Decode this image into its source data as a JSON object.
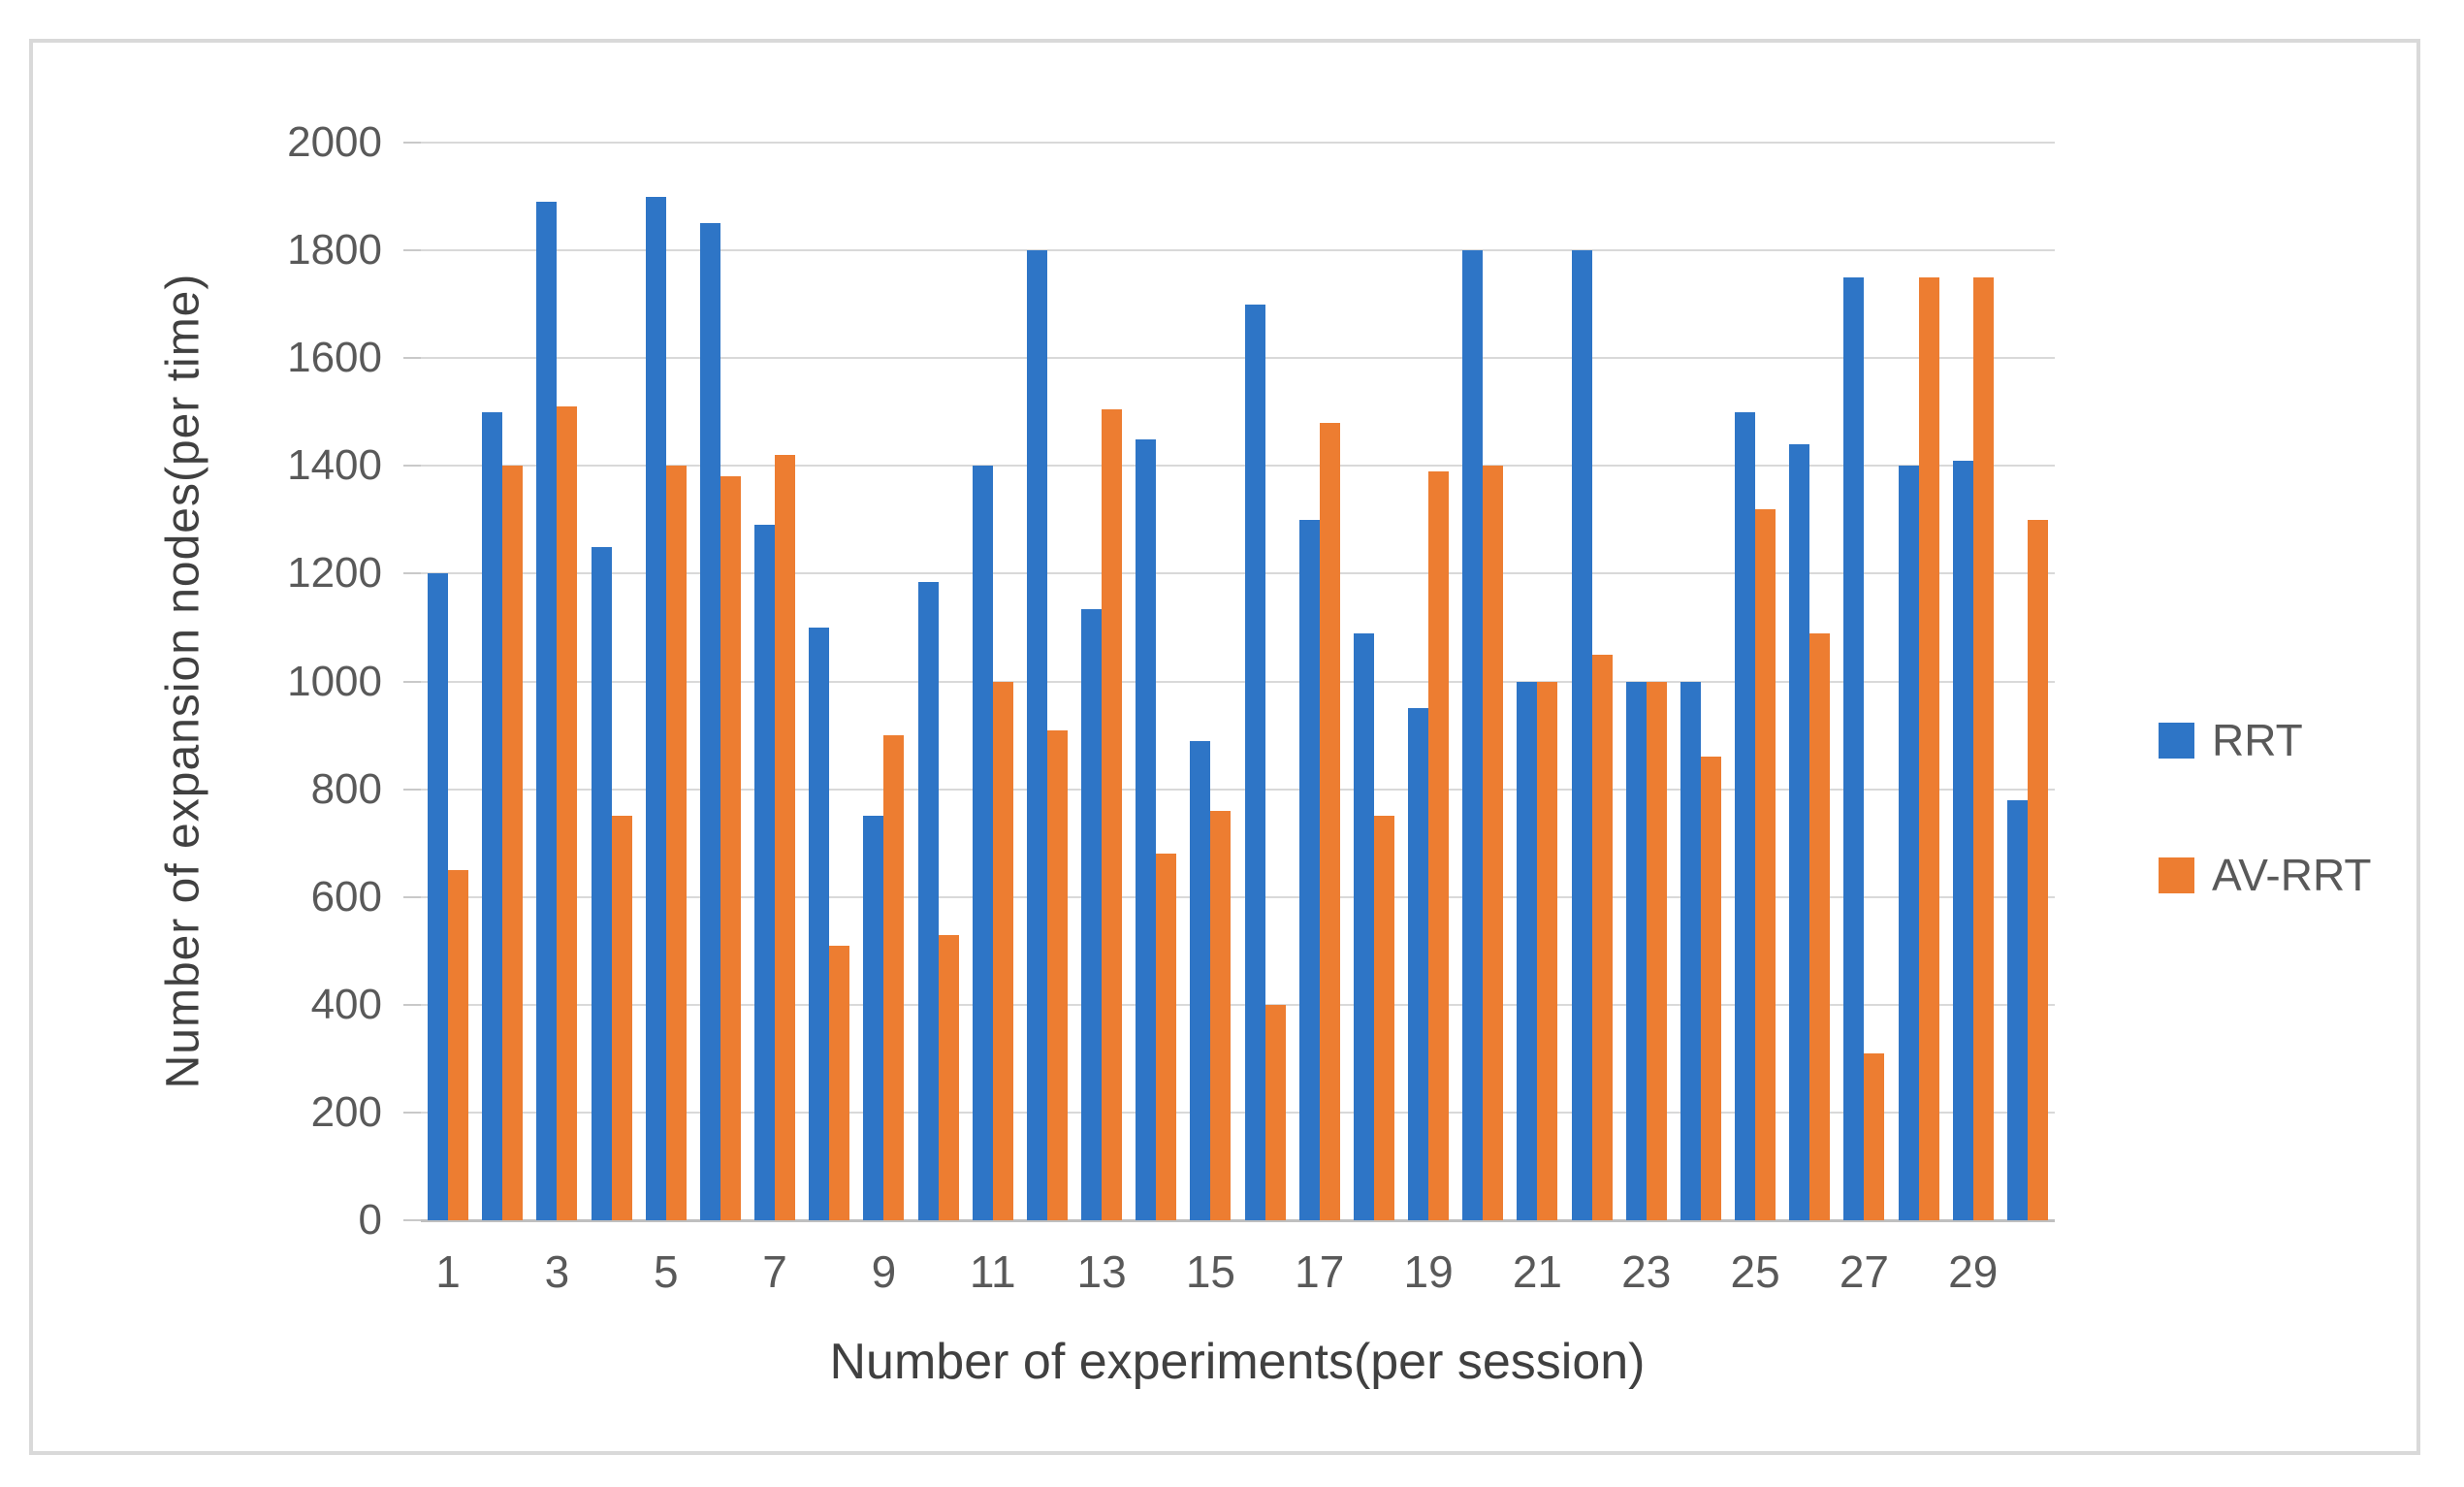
{
  "chart_data": {
    "type": "bar",
    "title": "",
    "xlabel": "Number of experiments(per session)",
    "ylabel": "Number of expansion nodes(per time)",
    "categories": [
      1,
      2,
      3,
      4,
      5,
      6,
      7,
      8,
      9,
      10,
      11,
      12,
      13,
      14,
      15,
      16,
      17,
      18,
      19,
      20,
      21,
      22,
      23,
      24,
      25,
      26,
      27,
      28,
      29,
      30
    ],
    "x_tick_labels": [
      "1",
      "3",
      "5",
      "7",
      "9",
      "11",
      "13",
      "15",
      "17",
      "19",
      "21",
      "23",
      "25",
      "27",
      "29"
    ],
    "x_tick_positions": [
      1,
      3,
      5,
      7,
      9,
      11,
      13,
      15,
      17,
      19,
      21,
      23,
      25,
      27,
      29
    ],
    "series": [
      {
        "name": "RRT",
        "color": "#2e75c6",
        "values": [
          1200,
          1500,
          1890,
          1250,
          1900,
          1850,
          1290,
          1100,
          750,
          1185,
          1400,
          1800,
          1135,
          1450,
          890,
          1700,
          1300,
          1090,
          950,
          1800,
          1000,
          1800,
          1000,
          1000,
          1500,
          1440,
          1750,
          1400,
          1410,
          780
        ]
      },
      {
        "name": "AV-RRT",
        "color": "#ed7d31",
        "values": [
          650,
          1400,
          1510,
          750,
          1400,
          1380,
          1420,
          510,
          900,
          530,
          1000,
          910,
          1505,
          680,
          760,
          400,
          1480,
          750,
          1390,
          1400,
          1000,
          1050,
          1000,
          860,
          1320,
          1090,
          310,
          1750,
          1750,
          1300
        ]
      }
    ],
    "ylim": [
      0,
      2000
    ],
    "y_ticks": [
      0,
      200,
      400,
      600,
      800,
      1000,
      1200,
      1400,
      1600,
      1800,
      2000
    ],
    "grid": true,
    "legend_position": "right"
  },
  "colors": {
    "gridline": "#d9d9d9",
    "axis_line": "#bfbfbf",
    "tick_text": "#595959",
    "axis_title_text": "#404040",
    "frame_border": "#d9d9d9",
    "background": "#ffffff"
  }
}
